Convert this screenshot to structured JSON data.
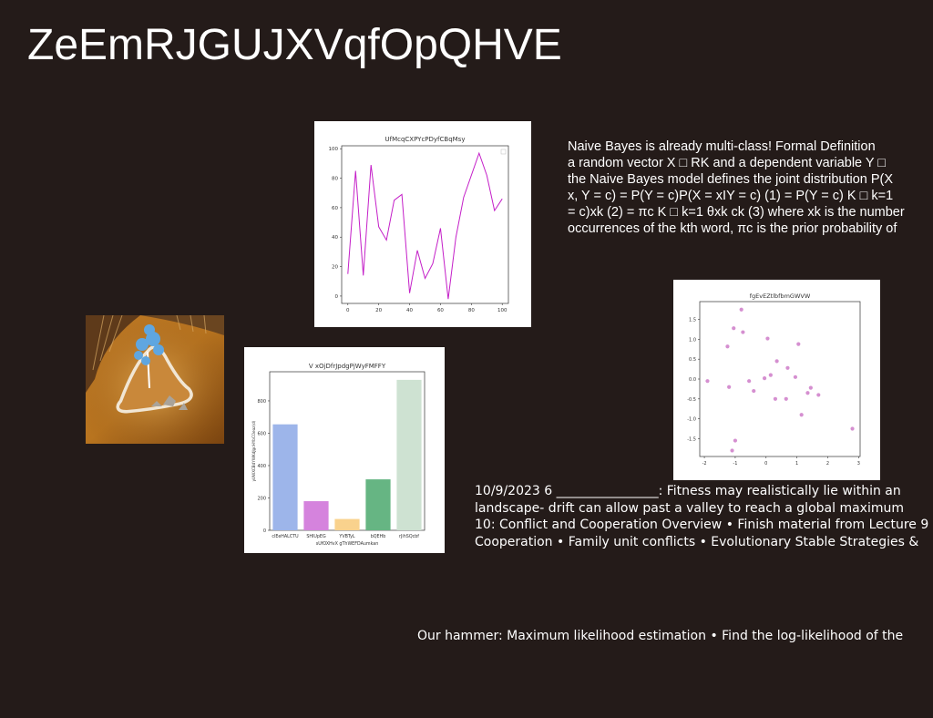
{
  "slide": {
    "title": "ZeEmRJGUJXVqfOpQHVE",
    "paragraphs": [
      "Naive Bayes is already multi-class! Formal Definition\na random vector X □ RK and a dependent variable Y □\nthe Naive Bayes model defines the joint distribution P(X\nx, Y = c) = P(Y = c)P(X = xIY = c) (1) = P(Y = c) K □ k=1\n= c)xk (2) = πc K □ k=1 θxk ck (3) where xk is the number\noccurrences of the kth word, πc is the prior probability of",
      "10/9/2023 6 ________________: Fitness may realistically lie within an\nlandscape- drift can allow past a valley to reach a global maximum\n10: Conflict and Cooperation Overview • Finish material from Lecture 9\nCooperation • Family unit conflicts • Evolutionary Stable Strategies &",
      "Our hammer: Maximum likelihood estimation • Find the log-likelihood of the"
    ]
  },
  "chart_data": [
    {
      "type": "line",
      "title": "UfMcqCXPYcPDyfCBqMsy",
      "x": [
        0,
        5,
        10,
        15,
        20,
        25,
        30,
        35,
        40,
        45,
        50,
        55,
        60,
        65,
        70,
        75,
        80,
        85,
        90,
        95,
        100
      ],
      "series": [
        {
          "values": [
            15,
            85,
            14,
            89,
            47,
            38,
            65,
            69,
            2,
            31,
            12,
            22,
            46,
            -2,
            40,
            67,
            97,
            82,
            58,
            66
          ],
          "x": [
            0,
            5,
            10,
            15,
            20,
            25,
            30,
            35,
            40,
            45,
            50,
            55,
            60,
            65,
            70,
            75,
            85,
            90,
            95,
            100
          ],
          "color": "#c41fc8"
        }
      ],
      "xlim": [
        -4,
        104
      ],
      "ylim": [
        -5,
        102
      ],
      "xticks": [
        "0",
        "20",
        "40",
        "60",
        "80",
        "100"
      ],
      "yticks": [
        "0",
        "20",
        "40",
        "60",
        "80",
        "100"
      ],
      "legend": "top-right"
    },
    {
      "type": "scatter",
      "title": "fgEvEZtlbfbmGWVW",
      "points": [
        [
          -1.9,
          -0.05
        ],
        [
          -1.25,
          0.82
        ],
        [
          -1.2,
          -0.2
        ],
        [
          -1.05,
          1.28
        ],
        [
          -1.1,
          -1.8
        ],
        [
          -1.0,
          -1.55
        ],
        [
          -0.8,
          1.75
        ],
        [
          -0.75,
          1.18
        ],
        [
          -0.55,
          -0.05
        ],
        [
          -0.4,
          -0.3
        ],
        [
          -0.05,
          0.02
        ],
        [
          0.05,
          1.02
        ],
        [
          0.15,
          0.1
        ],
        [
          0.3,
          -0.5
        ],
        [
          0.35,
          0.45
        ],
        [
          0.65,
          -0.5
        ],
        [
          0.7,
          0.28
        ],
        [
          0.95,
          0.05
        ],
        [
          1.05,
          0.88
        ],
        [
          1.15,
          -0.9
        ],
        [
          1.35,
          -0.35
        ],
        [
          1.45,
          -0.22
        ],
        [
          1.7,
          -0.4
        ],
        [
          2.8,
          -1.25
        ]
      ],
      "color": "#d58fd0",
      "xlim": [
        -2.15,
        3.05
      ],
      "ylim": [
        -1.95,
        1.95
      ],
      "xticks": [
        "-2",
        "-1",
        "0",
        "1",
        "2",
        "3"
      ],
      "yticks": [
        "-1.5",
        "-1.0",
        "-0.5",
        "0.0",
        "0.5",
        "1.0",
        "1.5"
      ]
    },
    {
      "type": "bar",
      "title": "V xOjDfrJpdgPjWyFMFFY",
      "xlabel": "sUfOXHvX gThWEFDAumkan",
      "ylabel": "yUWXCBdYWKdJgcHYbCOeaz(d)",
      "categories": [
        "clEeHALCTU",
        "SHIUpEG",
        "YVBTyL",
        "bQEHb",
        "rJihSQcbf"
      ],
      "values": [
        655,
        180,
        70,
        315,
        930
      ],
      "colors": [
        "#9db5ea",
        "#d583dd",
        "#f9d28d",
        "#66b583",
        "#cee2d2"
      ],
      "ylim": [
        0,
        980
      ],
      "yticks": [
        "0",
        "200",
        "400",
        "600",
        "800"
      ]
    }
  ]
}
